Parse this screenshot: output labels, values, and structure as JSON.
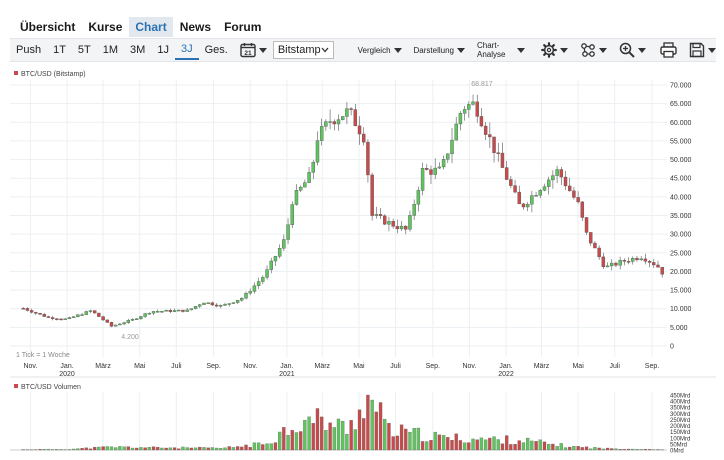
{
  "nav": {
    "items": [
      {
        "label": "Übersicht",
        "active": false
      },
      {
        "label": "Kurse",
        "active": false
      },
      {
        "label": "Chart",
        "active": true
      },
      {
        "label": "News",
        "active": false
      },
      {
        "label": "Forum",
        "active": false
      }
    ]
  },
  "toolbar": {
    "ranges": [
      "Push",
      "1T",
      "5T",
      "1M",
      "3M",
      "1J",
      "3J",
      "Ges."
    ],
    "active_range": "3J",
    "calendar_day": "21",
    "exchange": "Bitstamp",
    "menus": [
      "Vergleich",
      "Darstellung",
      "Chart-Analyse"
    ],
    "tools": [
      "gear-icon",
      "indicator-icon",
      "zoom-icon",
      "print-icon",
      "save-icon"
    ]
  },
  "chart_data": [
    {
      "type": "candlestick",
      "series_name": "BTC/USD (Bitstamp)",
      "interval_note": "1 Tick = 1 Woche",
      "y_ticks": [
        "70.000",
        "65.000",
        "60.000",
        "55.000",
        "50.000",
        "45.000",
        "40.000",
        "35.000",
        "30.000",
        "25.000",
        "20.000",
        "15.000",
        "10.000",
        "5.000",
        "0"
      ],
      "ylim": [
        0,
        70000
      ],
      "x_ticks": [
        "Nov.",
        "Jan.",
        "März",
        "Mai",
        "Juli",
        "Sep.",
        "Nov.",
        "Jan.",
        "März",
        "Mai",
        "Juli",
        "Sep.",
        "Nov.",
        "Jan.",
        "März",
        "Mai",
        "Juli",
        "Sep."
      ],
      "year_labels": [
        {
          "after_tick": 1,
          "label": "2020"
        },
        {
          "after_tick": 7,
          "label": "2021"
        },
        {
          "after_tick": 13,
          "label": "2022"
        }
      ],
      "annotations": {
        "high": "68.817",
        "low": "4.200"
      },
      "colors": {
        "up": "#5ec55e",
        "down": "#c94a4a"
      },
      "close_points": [
        [
          "2019-10-20",
          10100
        ],
        [
          "2019-12-01",
          7600
        ],
        [
          "2020-01-01",
          7200
        ],
        [
          "2020-02-10",
          9500
        ],
        [
          "2020-03-15",
          5300
        ],
        [
          "2020-04-20",
          7100
        ],
        [
          "2020-05-20",
          9300
        ],
        [
          "2020-07-20",
          9500
        ],
        [
          "2020-08-15",
          11800
        ],
        [
          "2020-09-15",
          10700
        ],
        [
          "2020-10-20",
          13000
        ],
        [
          "2020-11-25",
          19000
        ],
        [
          "2020-12-30",
          29000
        ],
        [
          "2021-01-10",
          39000
        ],
        [
          "2021-02-10",
          46000
        ],
        [
          "2021-02-21",
          56000
        ],
        [
          "2021-03-14",
          60500
        ],
        [
          "2021-04-14",
          63000
        ],
        [
          "2021-05-10",
          56000
        ],
        [
          "2021-05-23",
          35000
        ],
        [
          "2021-06-20",
          33000
        ],
        [
          "2021-07-20",
          31000
        ],
        [
          "2021-08-15",
          47000
        ],
        [
          "2021-09-15",
          47000
        ],
        [
          "2021-10-20",
          64000
        ],
        [
          "2021-11-10",
          65000
        ],
        [
          "2021-12-01",
          57000
        ],
        [
          "2021-12-25",
          48000
        ],
        [
          "2022-01-25",
          37000
        ],
        [
          "2022-03-01",
          43000
        ],
        [
          "2022-03-28",
          47000
        ],
        [
          "2022-05-01",
          38000
        ],
        [
          "2022-05-15",
          30000
        ],
        [
          "2022-06-15",
          21000
        ],
        [
          "2022-07-20",
          23000
        ],
        [
          "2022-08-15",
          24000
        ],
        [
          "2022-09-10",
          21500
        ],
        [
          "2022-09-21",
          19000
        ]
      ]
    },
    {
      "type": "bar",
      "series_name": "BTC/USD Volumen",
      "y_ticks": [
        "450Mrd",
        "400Mrd",
        "350Mrd",
        "300Mrd",
        "250Mrd",
        "200Mrd",
        "150Mrd",
        "100Mrd",
        "50Mrd",
        "0Mrd"
      ],
      "ylim": [
        0,
        450
      ],
      "volume_points": [
        [
          "2019-10-20",
          4
        ],
        [
          "2020-01-01",
          6
        ],
        [
          "2020-03-15",
          25
        ],
        [
          "2020-05-20",
          20
        ],
        [
          "2020-09-15",
          15
        ],
        [
          "2020-11-25",
          50
        ],
        [
          "2021-01-10",
          200
        ],
        [
          "2021-02-21",
          250
        ],
        [
          "2021-04-14",
          170
        ],
        [
          "2021-05-16",
          460
        ],
        [
          "2021-06-20",
          160
        ],
        [
          "2021-09-15",
          100
        ],
        [
          "2021-11-10",
          90
        ],
        [
          "2022-01-25",
          80
        ],
        [
          "2022-04-15",
          30
        ],
        [
          "2022-06-15",
          12
        ],
        [
          "2022-09-21",
          4
        ]
      ]
    }
  ]
}
